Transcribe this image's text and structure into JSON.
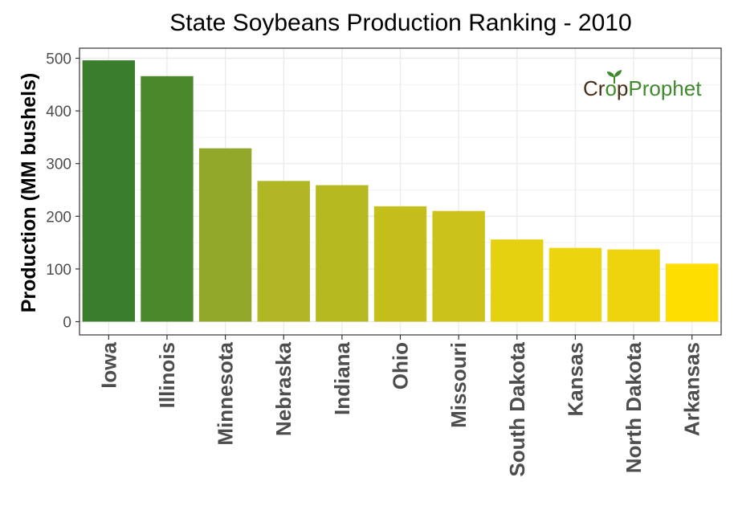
{
  "chart_data": {
    "type": "bar",
    "title": "State Soybeans Production Ranking - 2010",
    "ylabel": "Production (MM bushels)",
    "xlabel": "",
    "categories": [
      "Iowa",
      "Illinois",
      "Minnesota",
      "Nebraska",
      "Indiana",
      "Ohio",
      "Missouri",
      "South Dakota",
      "Kansas",
      "North Dakota",
      "Arkansas"
    ],
    "values": [
      496,
      466,
      329,
      267,
      259,
      219,
      210,
      156,
      140,
      137,
      110
    ],
    "bar_colors": [
      "#3a7d2c",
      "#4b8a2c",
      "#91a82a",
      "#b1b624",
      "#b6b822",
      "#c5bf1c",
      "#cbc21a",
      "#e6d111",
      "#ecd40e",
      "#eed40d",
      "#ffde00"
    ],
    "ylim": [
      0,
      520
    ],
    "yticks": [
      0,
      100,
      200,
      300,
      400,
      500
    ],
    "grid": true,
    "legend": "none"
  },
  "watermark": {
    "part1": "Cr",
    "part2": "o",
    "part3": "p",
    "part4": "Prophet",
    "brown": "#4a2f14",
    "green": "#3f8a2c"
  }
}
